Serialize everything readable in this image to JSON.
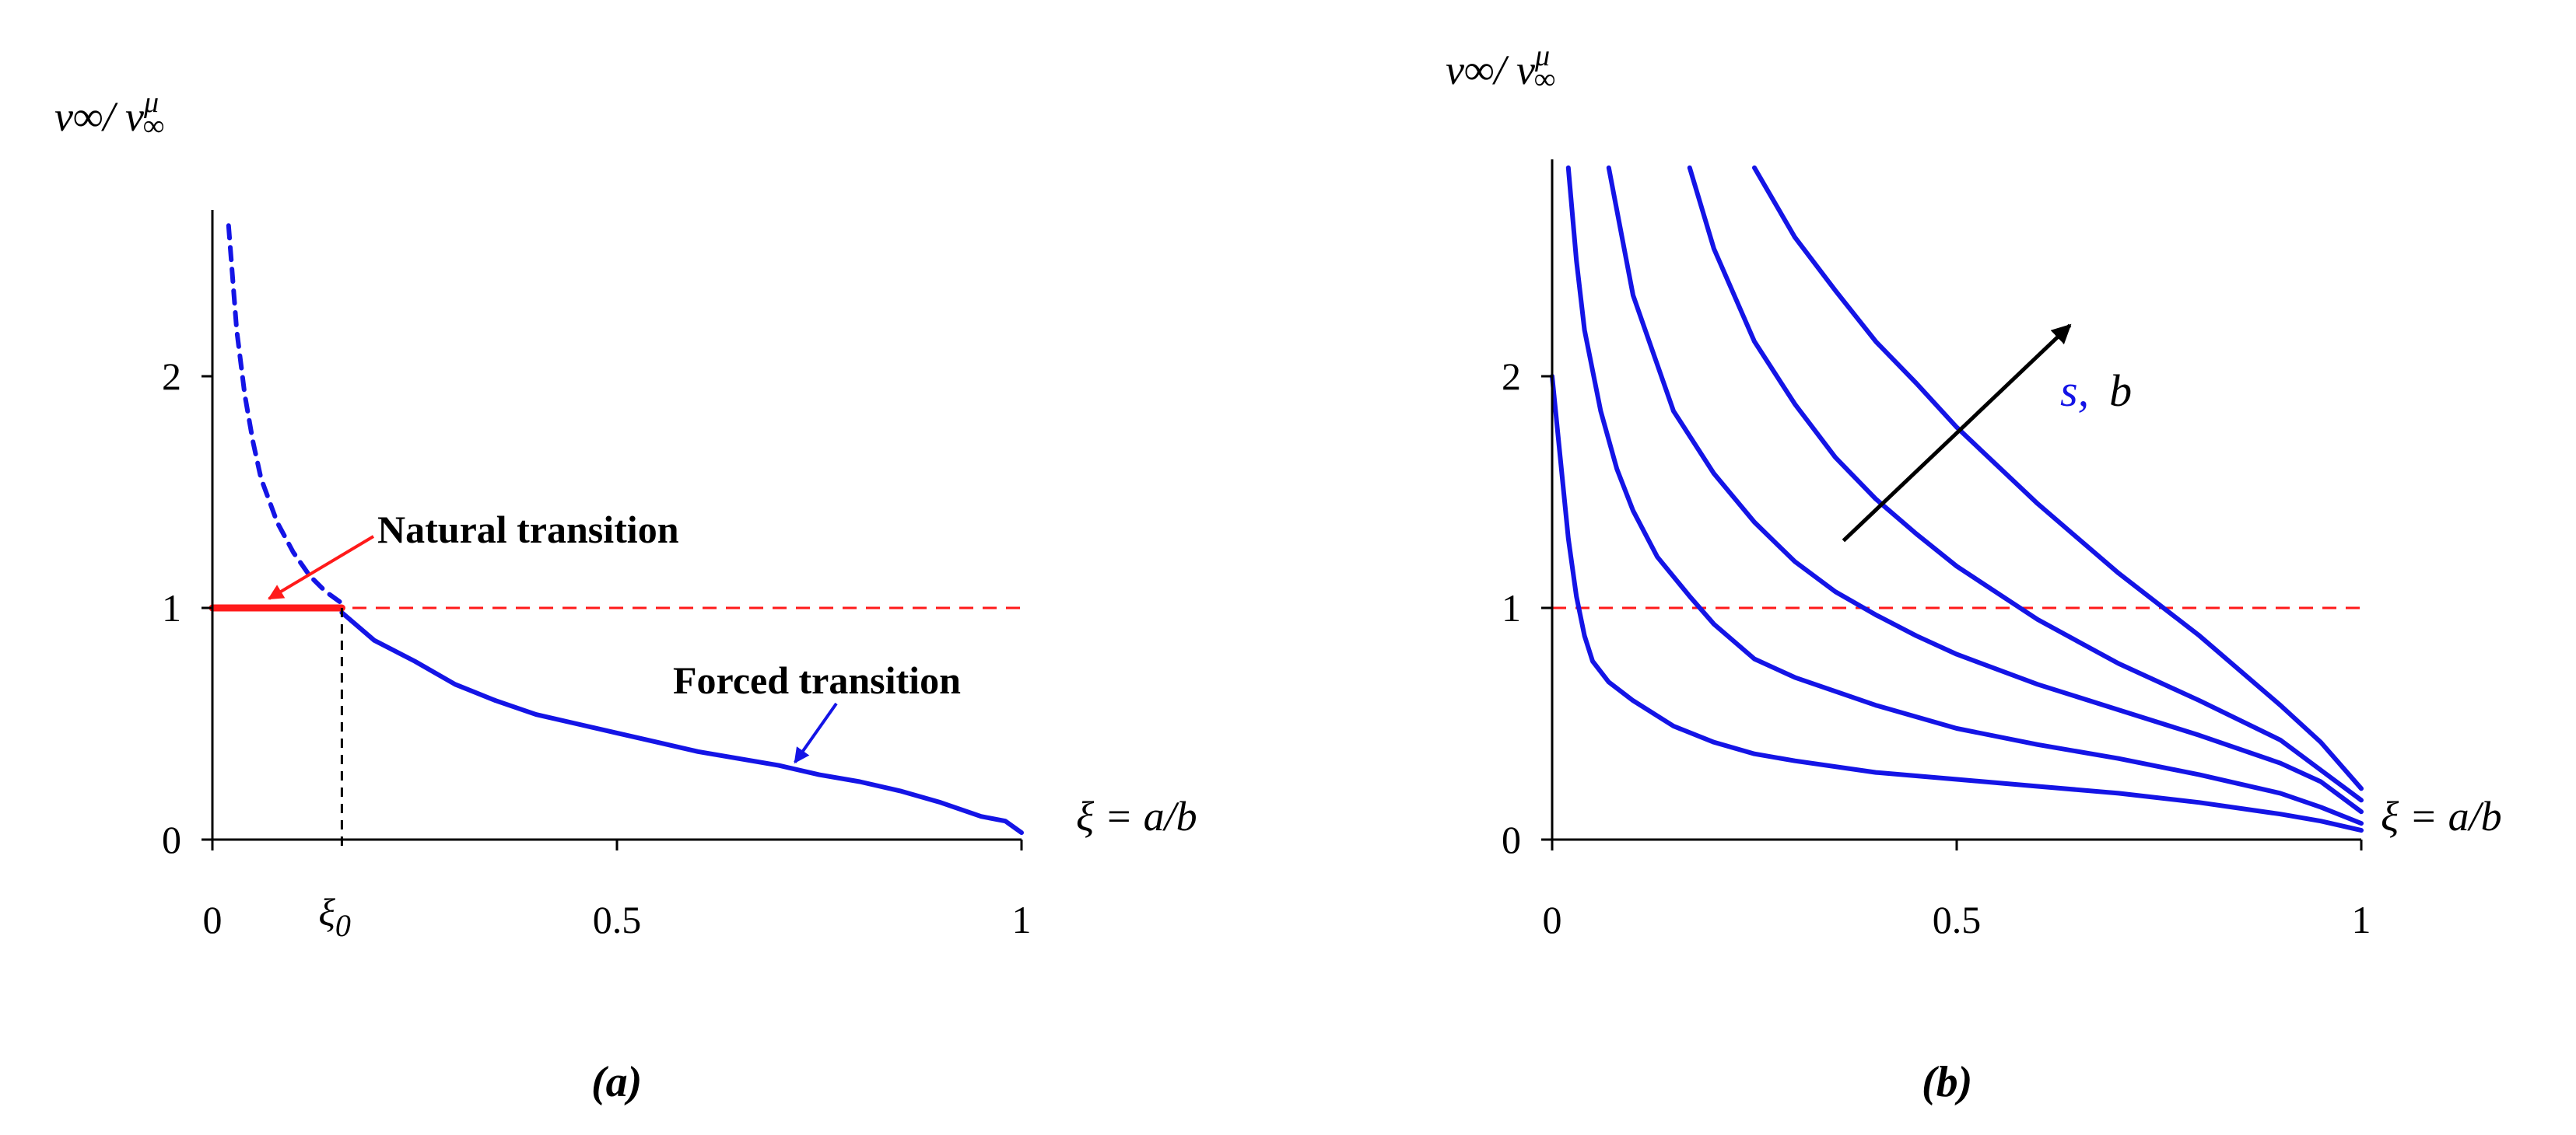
{
  "colors": {
    "blue": "#1414e6",
    "red": "#ff1a1a",
    "black": "#000000",
    "background": "#ffffff"
  },
  "chart_data": [
    {
      "type": "line",
      "panel_label": "(a)",
      "ylabel_main": "v∞/ v",
      "ylabel_sup": "μ",
      "ylabel_sub": "∞",
      "xlabel": "ξ = a/b",
      "xlim": [
        0,
        1
      ],
      "ylim": [
        0,
        2.7
      ],
      "x_ticks": [
        "0",
        "0.5",
        "1"
      ],
      "y_ticks": [
        "0",
        "1",
        "2"
      ],
      "extra_x_tick": {
        "label": "ξ0",
        "value": 0.16
      },
      "reference_lines": [
        {
          "y": 1.0,
          "style": "dashed",
          "color": "red"
        }
      ],
      "series": [
        {
          "style": "dashed",
          "color": "blue",
          "x": [
            0.02,
            0.03,
            0.04,
            0.05,
            0.06,
            0.08,
            0.1,
            0.12,
            0.14,
            0.16
          ],
          "y": [
            2.65,
            2.2,
            1.92,
            1.72,
            1.56,
            1.37,
            1.24,
            1.14,
            1.07,
            1.02
          ]
        },
        {
          "style": "solid",
          "color": "blue",
          "x": [
            0.16,
            0.2,
            0.25,
            0.3,
            0.35,
            0.4,
            0.45,
            0.5,
            0.55,
            0.6,
            0.65,
            0.7,
            0.75,
            0.8,
            0.85,
            0.9,
            0.95,
            0.98,
            1.0
          ],
          "y": [
            0.98,
            0.86,
            0.77,
            0.67,
            0.6,
            0.54,
            0.5,
            0.46,
            0.42,
            0.38,
            0.35,
            0.32,
            0.28,
            0.25,
            0.21,
            0.16,
            0.1,
            0.08,
            0.03
          ]
        },
        {
          "style": "solid-thick",
          "color": "red",
          "x": [
            0.0,
            0.16
          ],
          "y": [
            1.0,
            1.0
          ]
        }
      ],
      "annotations": [
        {
          "text": "Natural transition",
          "color": "red",
          "arrow_to": {
            "x": 0.07,
            "y": 1.02
          }
        },
        {
          "text": "Forced transition",
          "color": "blue",
          "arrow_to": {
            "x": 0.72,
            "y": 0.3
          }
        }
      ]
    },
    {
      "type": "line",
      "panel_label": "(b)",
      "ylabel_main": "v∞/ v",
      "ylabel_sup": "μ",
      "ylabel_sub": "∞",
      "xlabel": "ξ = a/b",
      "xlim": [
        0,
        1
      ],
      "ylim": [
        0,
        2.9
      ],
      "x_ticks": [
        "0",
        "0.5",
        "1"
      ],
      "y_ticks": [
        "0",
        "1",
        "2"
      ],
      "reference_lines": [
        {
          "y": 1.0,
          "style": "dashed",
          "color": "red"
        }
      ],
      "series": [
        {
          "color": "blue",
          "x": [
            0.0,
            0.01,
            0.02,
            0.03,
            0.04,
            0.05,
            0.07,
            0.1,
            0.15,
            0.2,
            0.25,
            0.3,
            0.4,
            0.5,
            0.6,
            0.7,
            0.8,
            0.9,
            0.95,
            1.0
          ],
          "y": [
            2.0,
            1.65,
            1.3,
            1.05,
            0.88,
            0.77,
            0.68,
            0.6,
            0.49,
            0.42,
            0.37,
            0.34,
            0.29,
            0.26,
            0.23,
            0.2,
            0.16,
            0.11,
            0.08,
            0.04
          ]
        },
        {
          "color": "blue",
          "x": [
            0.02,
            0.03,
            0.04,
            0.06,
            0.08,
            0.1,
            0.13,
            0.17,
            0.2,
            0.25,
            0.3,
            0.4,
            0.5,
            0.6,
            0.7,
            0.8,
            0.9,
            0.95,
            1.0
          ],
          "y": [
            2.9,
            2.5,
            2.2,
            1.85,
            1.6,
            1.42,
            1.22,
            1.05,
            0.93,
            0.78,
            0.7,
            0.58,
            0.48,
            0.41,
            0.35,
            0.28,
            0.2,
            0.14,
            0.07
          ]
        },
        {
          "color": "blue",
          "x": [
            0.07,
            0.1,
            0.15,
            0.2,
            0.25,
            0.3,
            0.35,
            0.4,
            0.45,
            0.5,
            0.6,
            0.7,
            0.8,
            0.9,
            0.95,
            1.0
          ],
          "y": [
            2.9,
            2.35,
            1.85,
            1.58,
            1.37,
            1.2,
            1.07,
            0.97,
            0.88,
            0.8,
            0.67,
            0.56,
            0.45,
            0.33,
            0.25,
            0.12
          ]
        },
        {
          "color": "blue",
          "x": [
            0.17,
            0.2,
            0.25,
            0.3,
            0.35,
            0.4,
            0.45,
            0.5,
            0.6,
            0.7,
            0.8,
            0.9,
            0.95,
            1.0
          ],
          "y": [
            2.9,
            2.55,
            2.15,
            1.88,
            1.65,
            1.47,
            1.32,
            1.18,
            0.95,
            0.76,
            0.6,
            0.43,
            0.3,
            0.17
          ]
        },
        {
          "color": "blue",
          "x": [
            0.25,
            0.3,
            0.35,
            0.4,
            0.45,
            0.5,
            0.6,
            0.7,
            0.8,
            0.9,
            0.95,
            1.0
          ],
          "y": [
            2.9,
            2.6,
            2.37,
            2.15,
            1.97,
            1.78,
            1.45,
            1.15,
            0.88,
            0.58,
            0.42,
            0.22
          ]
        }
      ],
      "annotations": [
        {
          "text_param": "s,",
          "text_b": "b",
          "arrow_from": {
            "x": 0.36,
            "y": 1.29
          },
          "arrow_to": {
            "x": 0.64,
            "y": 2.22
          }
        }
      ]
    }
  ]
}
